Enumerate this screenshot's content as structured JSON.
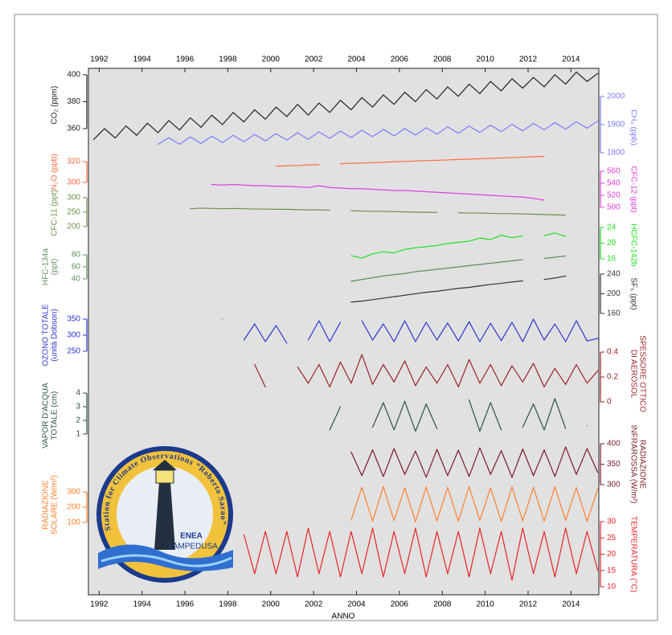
{
  "chart_data": {
    "type": "line",
    "x_label": "ANNO",
    "xlim": [
      1991.5,
      2015.3
    ],
    "xticks": [
      1992,
      1994,
      1996,
      1998,
      2000,
      2002,
      2004,
      2006,
      2008,
      2010,
      2012,
      2014
    ],
    "x": [
      1991.75,
      1992.25,
      1992.75,
      1993.25,
      1993.75,
      1994.25,
      1994.75,
      1995.25,
      1995.75,
      1996.25,
      1996.75,
      1997.25,
      1997.75,
      1998.25,
      1998.75,
      1999.25,
      1999.75,
      2000.25,
      2000.75,
      2001.25,
      2001.75,
      2002.25,
      2002.75,
      2003.25,
      2003.75,
      2004.25,
      2004.75,
      2005.25,
      2005.75,
      2006.25,
      2006.75,
      2007.25,
      2007.75,
      2008.25,
      2008.75,
      2009.25,
      2009.75,
      2010.25,
      2010.75,
      2011.25,
      2011.75,
      2012.25,
      2012.75,
      2013.25,
      2013.75,
      2014.25,
      2014.75,
      2015.25
    ],
    "series": [
      {
        "name": "CO₂ (ppm)",
        "color": "#222222",
        "axis": "left",
        "ylim": [
          350,
          405
        ],
        "yticks": [
          360,
          380,
          400
        ],
        "values": [
          352,
          360,
          353,
          362,
          355,
          364,
          357,
          366,
          359,
          368,
          361,
          370,
          363,
          372,
          365,
          374,
          367,
          376,
          369,
          378,
          370,
          379,
          372,
          381,
          374,
          383,
          376,
          385,
          378,
          387,
          380,
          389,
          382,
          391,
          384,
          393,
          386,
          395,
          388,
          397,
          390,
          398,
          391,
          400,
          393,
          402,
          395,
          401
        ]
      },
      {
        "name": "CH₄ (ppb)",
        "color": "#7b7bff",
        "axis": "right",
        "ylim": [
          1780,
          2000
        ],
        "yticks": [
          1800,
          1900,
          2000
        ],
        "values": [
          null,
          null,
          null,
          null,
          null,
          null,
          1830,
          1853,
          1830,
          1856,
          1833,
          1859,
          1836,
          1862,
          1839,
          1865,
          1842,
          1868,
          1845,
          1871,
          1848,
          1874,
          1851,
          1877,
          1854,
          1880,
          1857,
          1883,
          1860,
          1886,
          1863,
          1889,
          1866,
          1892,
          1869,
          1895,
          1872,
          1898,
          1875,
          1901,
          1878,
          1904,
          1881,
          1907,
          1884,
          1910,
          1887,
          1913
        ]
      },
      {
        "name": "N₂O (ppb)",
        "color": "#ff6a3d",
        "axis": "left",
        "ylim": [
          295,
          325
        ],
        "yticks": [
          300,
          320
        ],
        "values": [
          null,
          null,
          null,
          null,
          null,
          null,
          null,
          null,
          null,
          null,
          null,
          null,
          null,
          null,
          null,
          null,
          null,
          315.5,
          316,
          316.2,
          316.8,
          317,
          null,
          317.9,
          318.3,
          318.6,
          319,
          319.3,
          319.8,
          320.1,
          320.5,
          320.9,
          321.2,
          321.6,
          322,
          322.3,
          322.7,
          323.1,
          323.4,
          323.8,
          324.2,
          324.6,
          325,
          null,
          null,
          null,
          null,
          null
        ]
      },
      {
        "name": "CFC-12 (ppt)",
        "color": "#e23de2",
        "axis": "right",
        "ylim": [
          495,
          565
        ],
        "yticks": [
          500,
          520,
          540,
          560
        ],
        "values": [
          null,
          null,
          null,
          null,
          null,
          null,
          null,
          null,
          null,
          null,
          null,
          538,
          537,
          538,
          537,
          536,
          536,
          535,
          535,
          534,
          533,
          536,
          533,
          532,
          531,
          531,
          530,
          529,
          528,
          528,
          527,
          526,
          525,
          524,
          523,
          522,
          521,
          520,
          519,
          518,
          517,
          515,
          512,
          null,
          null,
          null,
          null,
          null
        ]
      },
      {
        "name": "CFC-11 (ppt)",
        "color": "#6f9050",
        "axis": "left",
        "ylim": [
          190,
          305
        ],
        "yticks": [
          200,
          250,
          300
        ],
        "values": [
          null,
          null,
          null,
          null,
          null,
          null,
          null,
          null,
          null,
          262,
          264,
          263,
          262,
          263,
          262,
          261,
          261,
          260,
          260,
          259,
          258,
          258,
          257,
          null,
          255,
          254,
          253,
          253,
          252,
          251,
          250,
          250,
          249,
          null,
          248,
          247,
          247,
          246,
          245,
          245,
          244,
          243,
          242,
          241,
          240,
          null,
          null,
          null
        ]
      },
      {
        "name": "HCFC-142b",
        "color": "#1ee01e",
        "axis": "right",
        "ylim": [
          14,
          25
        ],
        "yticks": [
          16,
          20,
          24
        ],
        "values": [
          null,
          null,
          null,
          null,
          null,
          null,
          null,
          null,
          null,
          null,
          null,
          null,
          null,
          null,
          null,
          null,
          null,
          null,
          null,
          null,
          null,
          null,
          null,
          null,
          16.8,
          16.2,
          17.3,
          17.8,
          17.5,
          18.4,
          18.8,
          19.1,
          19.4,
          19.9,
          20.2,
          20.5,
          21.3,
          20.9,
          22,
          21.4,
          21.8,
          null,
          21.9,
          22.6,
          21.7,
          null,
          null,
          null
        ]
      },
      {
        "name": [
          "HFC-134a",
          "(ppt)"
        ],
        "color": "#5f8f5f",
        "axis": "left",
        "ylim": [
          30,
          90
        ],
        "yticks": [
          40,
          60,
          80
        ],
        "values": [
          null,
          null,
          null,
          null,
          null,
          null,
          null,
          null,
          null,
          null,
          null,
          null,
          null,
          null,
          null,
          null,
          null,
          null,
          null,
          null,
          null,
          null,
          null,
          null,
          36,
          39,
          42,
          45,
          47,
          49,
          52,
          54,
          56,
          58,
          60,
          62,
          64,
          66,
          68,
          70,
          72,
          null,
          74,
          76,
          78,
          null,
          null,
          null
        ]
      },
      {
        "name": "SF₆ (ppt)",
        "color": "#333333",
        "axis": "right",
        "ylim": [
          155,
          245
        ],
        "yticks": [
          160,
          200,
          240
        ],
        "values": [
          null,
          null,
          null,
          null,
          null,
          null,
          null,
          null,
          null,
          null,
          null,
          null,
          null,
          null,
          null,
          null,
          null,
          null,
          null,
          null,
          null,
          null,
          null,
          null,
          183,
          185,
          188,
          191,
          194,
          197,
          200,
          203,
          205,
          208,
          211,
          213,
          216,
          219,
          221,
          224,
          226,
          null,
          229,
          232,
          236,
          null,
          null,
          null
        ]
      },
      {
        "name": [
          "OZONO TOTALE",
          "(unità Dobson)"
        ],
        "color": "#2a35d0",
        "axis": "left",
        "ylim": [
          235,
          365
        ],
        "yticks": [
          250,
          300,
          350
        ],
        "values": [
          null,
          null,
          null,
          null,
          null,
          null,
          null,
          null,
          null,
          null,
          null,
          null,
          350,
          null,
          285,
          335,
          280,
          330,
          275,
          null,
          285,
          345,
          280,
          340,
          null,
          345,
          285,
          335,
          280,
          345,
          280,
          340,
          285,
          338,
          282,
          342,
          280,
          337,
          283,
          340,
          280,
          350,
          285,
          335,
          280,
          345,
          282,
          290
        ]
      },
      {
        "name": [
          "SPESSORE OTTICO",
          "DI AEROSOL"
        ],
        "color": "#9b2226",
        "axis": "right",
        "ylim": [
          0,
          0.45
        ],
        "yticks": [
          0,
          0.2,
          0.4
        ],
        "values": [
          null,
          null,
          null,
          null,
          null,
          null,
          null,
          null,
          null,
          null,
          null,
          null,
          null,
          null,
          null,
          0.3,
          0.12,
          null,
          null,
          0.28,
          0.15,
          0.3,
          0.12,
          0.32,
          0.15,
          0.38,
          0.14,
          0.3,
          0.16,
          0.33,
          0.13,
          0.28,
          0.15,
          0.3,
          0.12,
          0.34,
          0.15,
          0.3,
          0.13,
          0.29,
          0.16,
          0.31,
          0.12,
          0.27,
          0.14,
          0.3,
          0.15,
          0.25
        ]
      },
      {
        "name": [
          "VAPOR D'ACQUA",
          "TOTALE (cm)"
        ],
        "color": "#2f4f4f",
        "axis": "left",
        "ylim": [
          0.5,
          4.2
        ],
        "yticks": [
          1,
          2,
          3,
          4
        ],
        "values": [
          null,
          null,
          null,
          null,
          null,
          null,
          null,
          null,
          null,
          null,
          null,
          null,
          null,
          null,
          null,
          null,
          null,
          null,
          null,
          null,
          null,
          null,
          1.3,
          3,
          null,
          null,
          1.5,
          3.3,
          1.3,
          3.4,
          1.2,
          3.2,
          1.4,
          null,
          null,
          3.5,
          1.2,
          3.3,
          1.3,
          null,
          1.5,
          3.2,
          1.3,
          3.6,
          1.4,
          null,
          1.6,
          null
        ]
      },
      {
        "name": [
          "RADIAZIONE",
          "INFRAROSSA (W/m²)"
        ],
        "color": "#7b1a2a",
        "axis": "right",
        "ylim": [
          290,
          410
        ],
        "yticks": [
          300,
          350,
          400
        ],
        "values": [
          null,
          null,
          null,
          null,
          null,
          null,
          null,
          null,
          null,
          null,
          null,
          null,
          null,
          null,
          null,
          null,
          null,
          null,
          null,
          null,
          null,
          null,
          null,
          null,
          380,
          322,
          385,
          320,
          388,
          325,
          382,
          318,
          386,
          322,
          384,
          320,
          390,
          325,
          383,
          318,
          387,
          322,
          385,
          320,
          392,
          325,
          388,
          330
        ]
      },
      {
        "name": [
          "RADIAZIONE",
          "SOLARE (W/m²)"
        ],
        "color": "#ff7f2a",
        "axis": "left",
        "ylim": [
          50,
          380
        ],
        "yticks": [
          100,
          200,
          300
        ],
        "values": [
          null,
          null,
          null,
          null,
          null,
          null,
          null,
          null,
          null,
          null,
          null,
          null,
          null,
          null,
          null,
          null,
          null,
          null,
          null,
          null,
          null,
          null,
          null,
          null,
          115,
          330,
          108,
          335,
          112,
          328,
          105,
          332,
          110,
          330,
          108,
          335,
          112,
          327,
          106,
          333,
          110,
          330,
          108,
          334,
          112,
          329,
          107,
          320
        ]
      },
      {
        "name": "TEMPERATURA (°C)",
        "color": "#e8242a",
        "axis": "right",
        "ylim": [
          8,
          32
        ],
        "yticks": [
          10,
          15,
          20,
          25,
          30
        ],
        "values": [
          null,
          null,
          null,
          null,
          null,
          null,
          null,
          null,
          null,
          null,
          null,
          null,
          null,
          null,
          26,
          14,
          27,
          14,
          27,
          13,
          28,
          14,
          27,
          13,
          27,
          14,
          28,
          13,
          27,
          14,
          28,
          13,
          27,
          14,
          27,
          13,
          28,
          14,
          27,
          12,
          28,
          14,
          27,
          13,
          28,
          14,
          27,
          15
        ]
      }
    ]
  },
  "logo": {
    "title": "Station for Climate Observations “Roberto Sarao”",
    "org": "ENEA",
    "place": "LAMPEDUSA"
  }
}
